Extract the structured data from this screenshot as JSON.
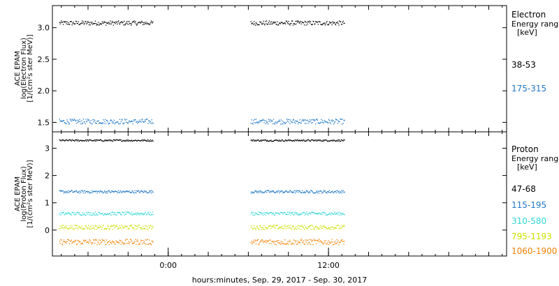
{
  "chart_data": [
    {
      "type": "scatter",
      "panel": "electron",
      "ylabel_lines": [
        "ACE EPAM",
        "log(Electron Flux)",
        "[1/(cm²s ster MeV)]"
      ],
      "ylim": [
        1.35,
        3.35
      ],
      "yticks": [
        1.5,
        2.0,
        2.5,
        3.0
      ],
      "ytick_labels": [
        "1.5",
        "2.0",
        "2.5",
        "3.0"
      ],
      "legend_title": "Electron",
      "legend_sub1": "Energy range",
      "legend_sub2": "[keV]",
      "legend_position": "right",
      "series": [
        {
          "name": "38-53",
          "color": "#000000",
          "level": 3.08,
          "jitter": 0.035
        },
        {
          "name": "175-315",
          "color": "#1f78c8",
          "level": 1.52,
          "jitter": 0.04
        }
      ]
    },
    {
      "type": "scatter",
      "panel": "proton",
      "ylabel_lines": [
        "ACE EPAM",
        "log(Proton Flux)",
        "[1/(cm²s ster MeV)]"
      ],
      "ylim": [
        -0.95,
        3.6
      ],
      "yticks": [
        0,
        1,
        2,
        3
      ],
      "ytick_labels": [
        "0",
        "1",
        "2",
        "3"
      ],
      "legend_title": "Proton",
      "legend_sub1": "Energy range",
      "legend_sub2": "[keV]",
      "legend_position": "right",
      "series": [
        {
          "name": "47-68",
          "color": "#000000",
          "level": 3.3,
          "jitter": 0.03
        },
        {
          "name": "115-195",
          "color": "#1f78c8",
          "level": 1.42,
          "jitter": 0.05
        },
        {
          "name": "310-580",
          "color": "#33d6d6",
          "level": 0.62,
          "jitter": 0.06
        },
        {
          "name": "795-1193",
          "color": "#c8e000",
          "level": 0.12,
          "jitter": 0.08
        },
        {
          "name": "1060-1900",
          "color": "#f08000",
          "level": -0.42,
          "jitter": 0.1
        }
      ]
    }
  ],
  "time_axis": {
    "range": [
      "2017-09-28 15:20",
      "2017-09-30 01:20"
    ],
    "data_segments": [
      [
        "2017-09-28 15:50",
        "2017-09-28 22:50"
      ],
      [
        "2017-09-29 06:10",
        "2017-09-29 13:10"
      ]
    ],
    "major_ticks": [
      "2017-09-29 00:00",
      "2017-09-29 12:00"
    ],
    "tick_labels": [
      "0:00",
      "12:00"
    ],
    "xlabel": "hours:minutes, Sep. 29, 2017 - Sep. 30, 2017"
  }
}
